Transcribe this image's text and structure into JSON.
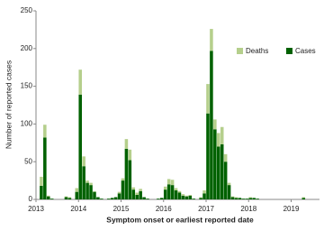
{
  "chart_data": {
    "type": "stacked_bar",
    "x_label": "Symptom onset or earliest reported date",
    "y_label": "Number of reported cases",
    "categories": [
      "2013",
      null,
      null,
      null,
      null,
      null,
      null,
      null,
      null,
      null,
      null,
      null,
      "2014",
      null,
      null,
      null,
      null,
      null,
      null,
      null,
      null,
      null,
      null,
      null,
      "2015",
      null,
      null,
      null,
      null,
      null,
      null,
      null,
      null,
      null,
      null,
      null,
      "2016",
      null,
      null,
      null,
      null,
      null,
      null,
      null,
      null,
      null,
      null,
      null,
      "2017",
      null,
      null,
      null,
      null,
      null,
      null,
      null,
      null,
      null,
      null,
      null,
      "2018",
      null,
      null,
      null,
      null,
      null,
      null,
      null,
      null,
      null,
      null,
      null,
      "2019",
      null,
      null,
      null,
      null,
      null,
      null,
      null
    ],
    "series": [
      {
        "name": "Cases",
        "color": "#006100",
        "values": [
          0,
          18,
          82,
          4,
          1,
          0,
          0,
          0,
          3,
          2,
          0,
          10,
          139,
          44,
          22,
          19,
          10,
          3,
          1,
          0,
          1,
          2,
          3,
          8,
          25,
          67,
          52,
          13,
          6,
          11,
          3,
          1,
          0,
          0,
          1,
          2,
          13,
          20,
          19,
          12,
          9,
          5,
          4,
          5,
          1,
          0,
          2,
          8,
          114,
          197,
          93,
          70,
          73,
          50,
          19,
          3,
          2,
          2,
          1,
          1,
          2,
          2,
          1,
          0,
          0,
          0,
          0,
          0,
          0,
          0,
          0,
          0,
          0,
          0,
          0,
          2,
          0,
          0,
          0,
          0
        ]
      },
      {
        "name": "Deaths",
        "color": "#b5cf8c",
        "values": [
          0,
          12,
          17,
          1,
          0,
          0,
          0,
          0,
          1,
          1,
          0,
          5,
          33,
          13,
          3,
          3,
          1,
          0,
          0,
          0,
          0,
          0,
          0,
          2,
          3,
          13,
          14,
          3,
          3,
          3,
          0,
          0,
          0,
          0,
          0,
          0,
          4,
          7,
          7,
          3,
          2,
          2,
          1,
          1,
          0,
          0,
          1,
          4,
          39,
          29,
          13,
          18,
          23,
          10,
          3,
          1,
          1,
          0,
          0,
          0,
          1,
          0,
          0,
          0,
          0,
          0,
          0,
          0,
          0,
          0,
          0,
          0,
          0,
          0,
          0,
          1,
          0,
          0,
          0,
          0
        ]
      }
    ],
    "ylim": [
      0,
      250
    ],
    "yticks": [
      0,
      50,
      100,
      150,
      200,
      250
    ]
  }
}
